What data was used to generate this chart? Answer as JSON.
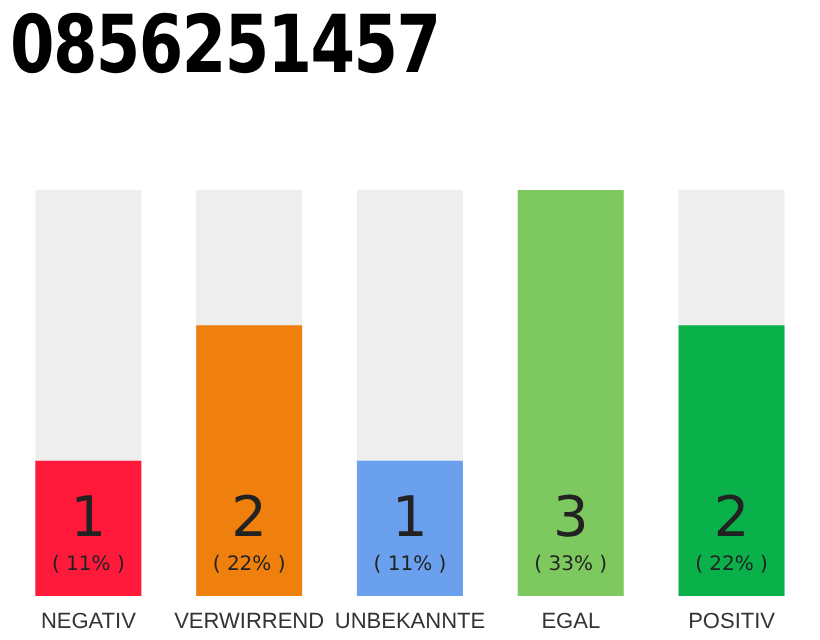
{
  "chart_data": {
    "type": "bar",
    "title": "0856251457",
    "categories": [
      "NEGATIV",
      "VERWIRREND",
      "UNBEKANNTE",
      "EGAL",
      "POSITIV"
    ],
    "values": [
      11,
      22,
      11,
      33,
      22
    ],
    "colors": [
      "#ff1a3c",
      "#f0800e",
      "#6aa0ee",
      "#7dc960",
      "#0ab14a"
    ],
    "value_labels": [
      "1\n( 11% )",
      "2\n( 22% )",
      "1\n( 11% )",
      "3\n( 33% )",
      "2\n( 22% )"
    ],
    "tick_labels": "x"
  }
}
